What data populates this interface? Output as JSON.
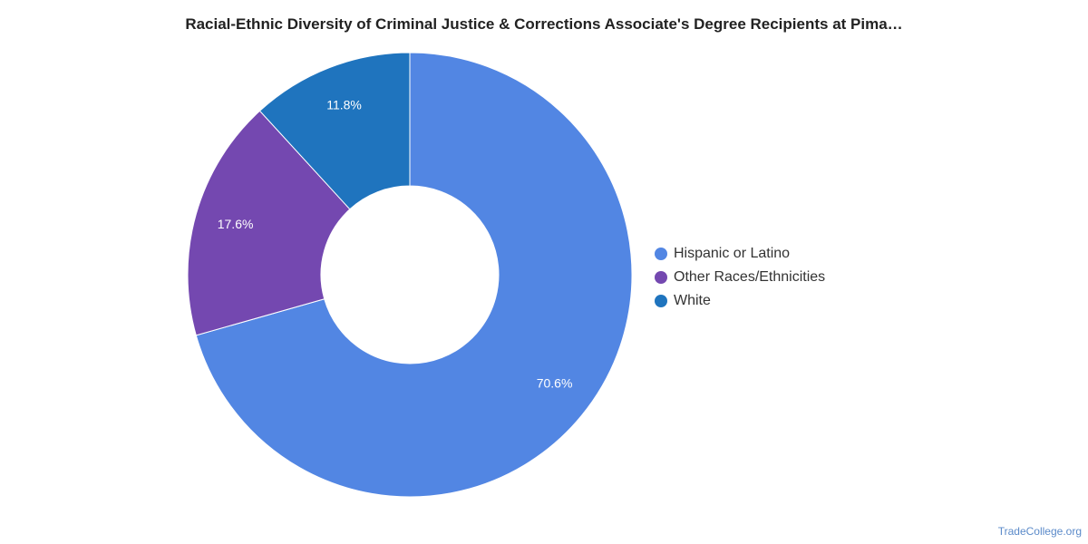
{
  "chart_data": {
    "type": "pie",
    "title": "Racial-Ethnic Diversity of Criminal Justice & Corrections Associate's Degree Recipients at Pima…",
    "donut": true,
    "legend_position": "right",
    "slices": [
      {
        "label": "Hispanic or Latino",
        "value": 70.6,
        "value_label": "70.6%",
        "color": "#5286e3"
      },
      {
        "label": "Other Races/Ethnicities",
        "value": 17.6,
        "value_label": "17.6%",
        "color": "#7448b0"
      },
      {
        "label": "White",
        "value": 11.8,
        "value_label": "11.8%",
        "color": "#1f74be"
      }
    ]
  },
  "watermark": "TradeCollege.org"
}
